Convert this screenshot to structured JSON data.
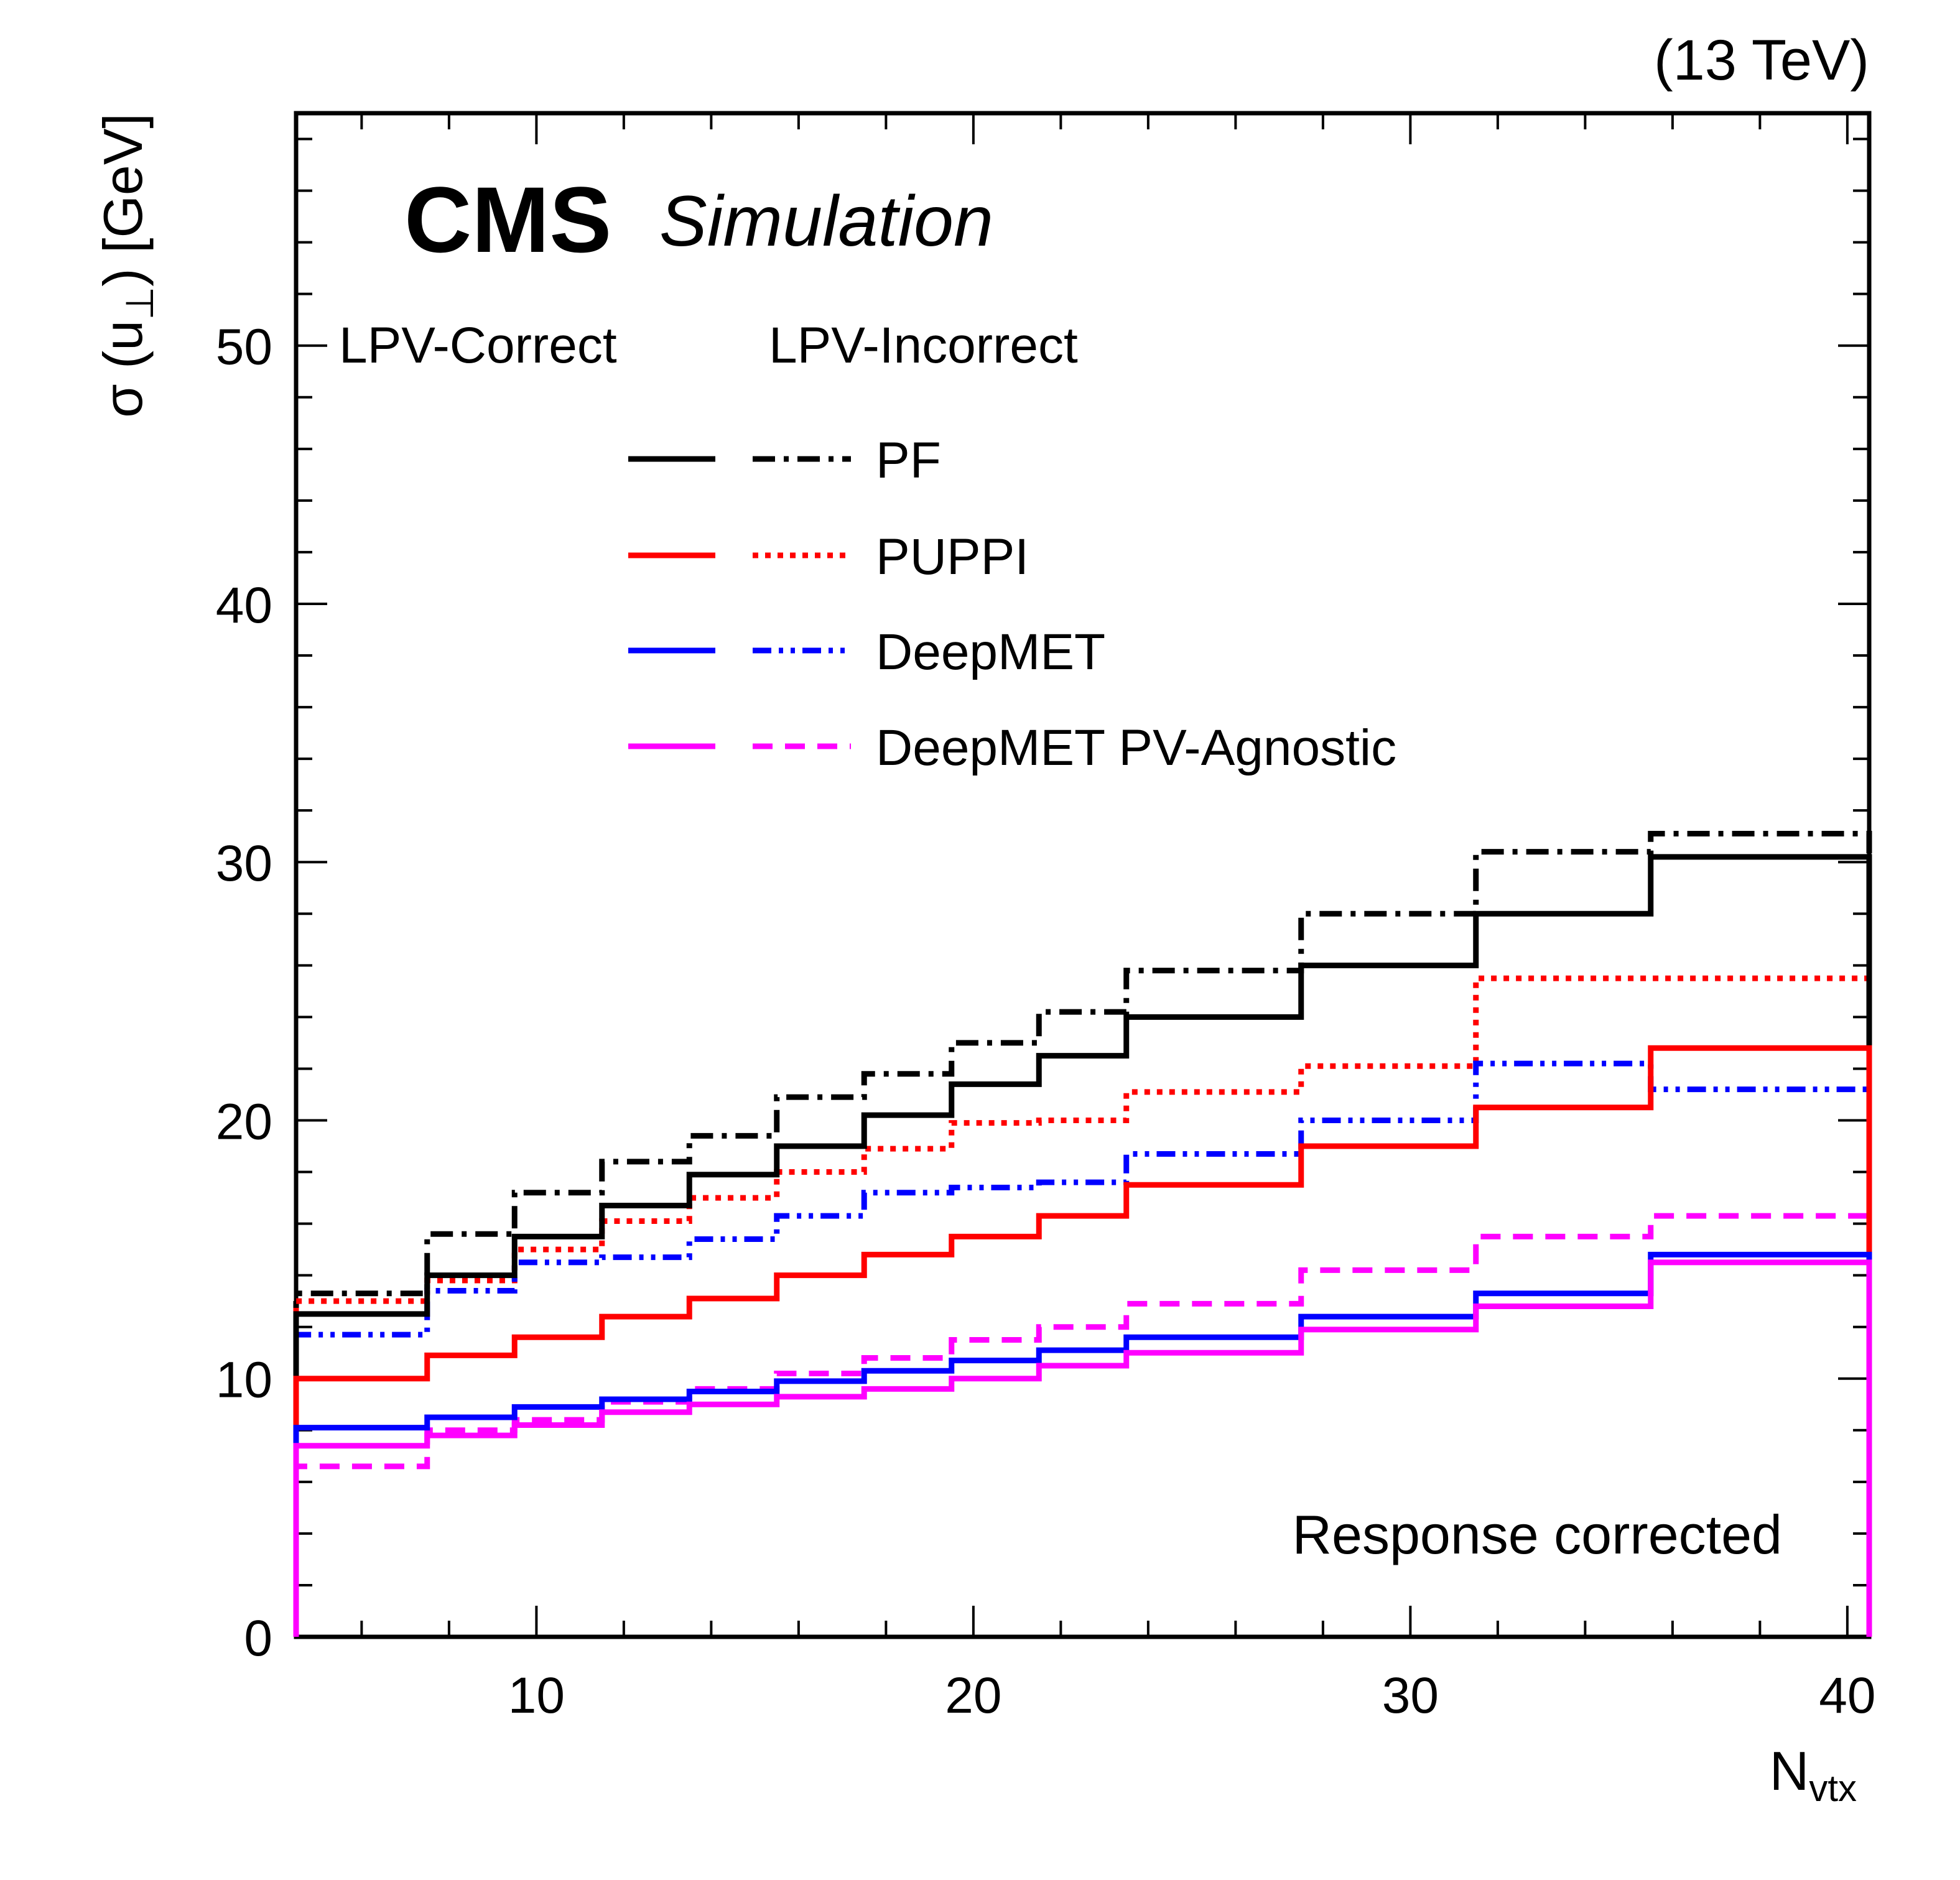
{
  "chart_data": {
    "type": "step-histogram",
    "energy_label": "(13 TeV)",
    "experiment": "CMS",
    "subtitle": "Simulation",
    "ylabel_main": "σ (u",
    "ylabel_sub": "⊥",
    "ylabel_end": ") [GeV]",
    "xlabel_main": "N",
    "xlabel_sub": "vtx",
    "annotation": "Response corrected",
    "legend_header_correct": "LPV-Correct",
    "legend_header_incorrect": "LPV-Incorrect",
    "xlim": [
      4.5,
      40.5
    ],
    "ylim": [
      0,
      59
    ],
    "x_ticks": [
      10,
      20,
      30,
      40
    ],
    "y_ticks": [
      0,
      10,
      20,
      30,
      40,
      50
    ],
    "x_minor_step": 2,
    "y_minor_step": 2,
    "bin_edges": [
      4.5,
      7.5,
      9.5,
      11.5,
      13.5,
      15.5,
      17.5,
      19.5,
      21.5,
      23.5,
      27.5,
      31.5,
      35.5,
      40.5
    ],
    "series": [
      {
        "name": "PF",
        "variant": "LPV-Correct",
        "color": "#000000",
        "style": "solid",
        "values": [
          12.5,
          14.0,
          15.5,
          16.7,
          17.9,
          19.0,
          20.2,
          21.4,
          22.5,
          24.0,
          26.0,
          28.0,
          30.2
        ]
      },
      {
        "name": "PF",
        "variant": "LPV-Incorrect",
        "color": "#000000",
        "style": "dashdot",
        "values": [
          13.3,
          15.6,
          17.2,
          18.4,
          19.4,
          20.9,
          21.8,
          23.0,
          24.2,
          25.8,
          28.0,
          30.4,
          31.1
        ]
      },
      {
        "name": "PUPPI",
        "variant": "LPV-Correct",
        "color": "#ff0000",
        "style": "solid",
        "values": [
          10.0,
          10.9,
          11.6,
          12.4,
          13.1,
          14.0,
          14.8,
          15.5,
          16.3,
          17.5,
          19.0,
          20.5,
          22.8
        ]
      },
      {
        "name": "PUPPI",
        "variant": "LPV-Incorrect",
        "color": "#ff0000",
        "style": "dotted",
        "values": [
          13.0,
          13.8,
          15.0,
          16.1,
          17.0,
          18.0,
          18.9,
          19.9,
          20.0,
          21.1,
          22.1,
          25.5,
          25.5
        ]
      },
      {
        "name": "DeepMET",
        "variant": "LPV-Correct",
        "color": "#0000ff",
        "style": "solid",
        "values": [
          8.1,
          8.5,
          8.9,
          9.2,
          9.5,
          9.9,
          10.3,
          10.7,
          11.1,
          11.6,
          12.4,
          13.3,
          14.8
        ]
      },
      {
        "name": "DeepMET",
        "variant": "LPV-Incorrect",
        "color": "#0000ff",
        "style": "dashdotdot",
        "values": [
          11.7,
          13.4,
          14.5,
          14.7,
          15.4,
          16.3,
          17.2,
          17.4,
          17.6,
          18.7,
          20.0,
          22.2,
          21.2
        ]
      },
      {
        "name": "DeepMET PV-Agnostic",
        "variant": "LPV-Correct",
        "color": "#ff00ff",
        "style": "solid",
        "values": [
          7.4,
          7.8,
          8.2,
          8.7,
          9.0,
          9.3,
          9.6,
          10.0,
          10.5,
          11.0,
          11.9,
          12.8,
          14.5
        ]
      },
      {
        "name": "DeepMET PV-Agnostic",
        "variant": "LPV-Incorrect",
        "color": "#ff00ff",
        "style": "dashed",
        "values": [
          6.6,
          8.0,
          8.4,
          9.1,
          9.6,
          10.2,
          10.8,
          11.5,
          12.0,
          12.9,
          14.2,
          15.5,
          16.3
        ]
      }
    ],
    "legend": [
      {
        "label": "PF",
        "color": "#000000",
        "style_correct": "solid",
        "style_incorrect": "dashdot"
      },
      {
        "label": "PUPPI",
        "color": "#ff0000",
        "style_correct": "solid",
        "style_incorrect": "dotted"
      },
      {
        "label": "DeepMET",
        "color": "#0000ff",
        "style_correct": "solid",
        "style_incorrect": "dashdotdot"
      },
      {
        "label": "DeepMET PV-Agnostic",
        "color": "#ff00ff",
        "style_correct": "solid",
        "style_incorrect": "dashed"
      }
    ]
  }
}
